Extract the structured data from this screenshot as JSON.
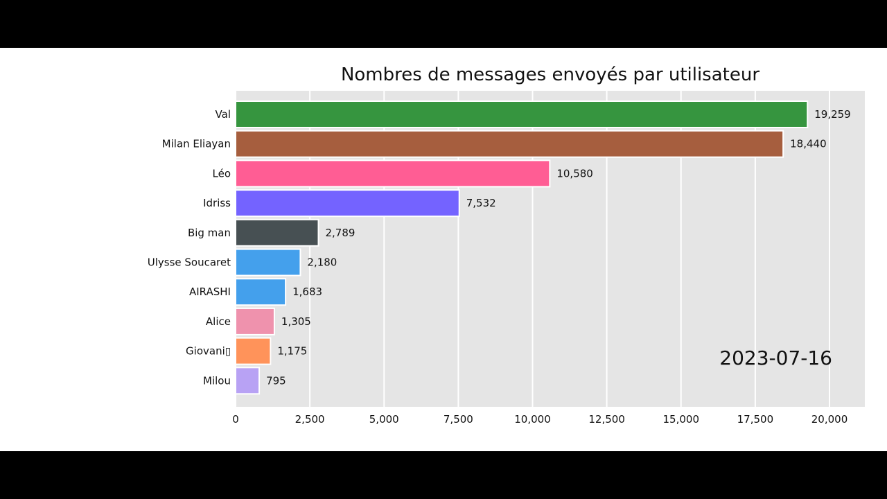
{
  "chart_data": {
    "type": "bar",
    "orientation": "horizontal",
    "title": "Nombres de messages envoyés par utilisateur",
    "date_label": "2023-07-16",
    "categories": [
      "Val",
      "Milan Eliayan",
      "Léo",
      "Idriss",
      "Big man",
      "Ulysse Soucaret",
      "AIRASHI",
      "Alice",
      "Giovani▯",
      "Milou"
    ],
    "values": [
      19259,
      18440,
      10580,
      7532,
      2789,
      2180,
      1683,
      1305,
      1175,
      795
    ],
    "value_labels": [
      "19,259",
      "18,440",
      "10,580",
      "7,532",
      "2,789",
      "2,180",
      "1,683",
      "1,305",
      "1,175",
      "795"
    ],
    "colors": [
      "#36953f",
      "#a65e3e",
      "#ff5d94",
      "#7463ff",
      "#475053",
      "#44a0ec",
      "#44a0ec",
      "#ef92ad",
      "#ff935a",
      "#b8a2f4"
    ],
    "xticks": [
      0,
      2500,
      5000,
      7500,
      10000,
      12500,
      15000,
      17500,
      20000
    ],
    "xtick_labels": [
      "0",
      "2,500",
      "5,000",
      "7,500",
      "10,000",
      "12,500",
      "15,000",
      "17,500",
      "20,000"
    ],
    "xlim": [
      0,
      21200
    ],
    "grid": true,
    "background": "#e5e5e5"
  }
}
